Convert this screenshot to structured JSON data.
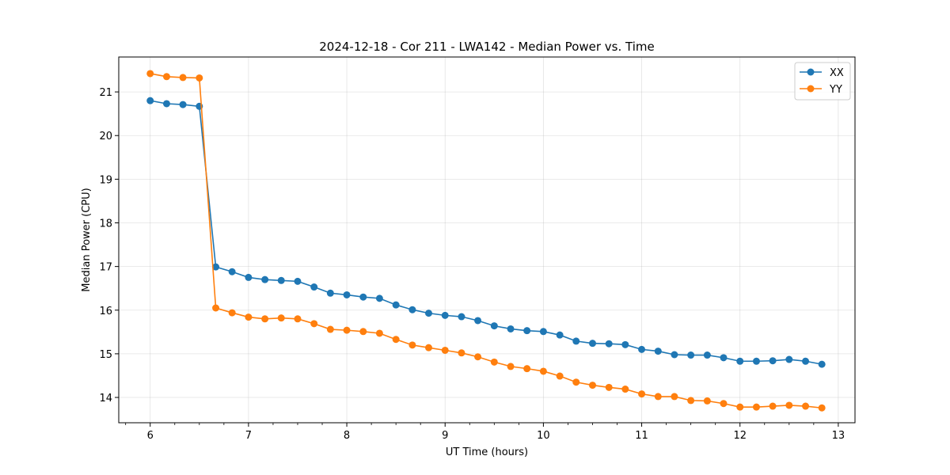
{
  "chart_data": {
    "type": "line",
    "title": "2024-12-18 - Cor 211 - LWA142 - Median Power vs. Time",
    "xlabel": "UT Time (hours)",
    "ylabel": "Median Power (CPU)",
    "xlim": [
      5.68,
      13.17
    ],
    "ylim": [
      13.42,
      21.8
    ],
    "xticks": [
      6,
      7,
      8,
      9,
      10,
      11,
      12,
      13
    ],
    "yticks": [
      14,
      15,
      16,
      17,
      18,
      19,
      20,
      21
    ],
    "xtick_labels": [
      "6",
      "7",
      "8",
      "9",
      "10",
      "11",
      "12",
      "13"
    ],
    "ytick_labels": [
      "14",
      "15",
      "16",
      "17",
      "18",
      "19",
      "20",
      "21"
    ],
    "grid": true,
    "legend_position": "top-right",
    "x": [
      6.0,
      6.167,
      6.333,
      6.5,
      6.667,
      6.833,
      7.0,
      7.167,
      7.333,
      7.5,
      7.667,
      7.833,
      8.0,
      8.167,
      8.333,
      8.5,
      8.667,
      8.833,
      9.0,
      9.167,
      9.333,
      9.5,
      9.667,
      9.833,
      10.0,
      10.167,
      10.333,
      10.5,
      10.667,
      10.833,
      11.0,
      11.167,
      11.333,
      11.5,
      11.667,
      11.833,
      12.0,
      12.167,
      12.333,
      12.5,
      12.667,
      12.833
    ],
    "series": [
      {
        "name": "XX",
        "color": "#1f77b4",
        "values": [
          20.8,
          20.73,
          20.71,
          20.67,
          16.99,
          16.88,
          16.75,
          16.7,
          16.68,
          16.66,
          16.53,
          16.39,
          16.35,
          16.3,
          16.27,
          16.12,
          16.01,
          15.93,
          15.88,
          15.85,
          15.76,
          15.64,
          15.57,
          15.53,
          15.51,
          15.43,
          15.29,
          15.24,
          15.23,
          15.21,
          15.1,
          15.06,
          14.98,
          14.97,
          14.97,
          14.91,
          14.83,
          14.83,
          14.84,
          14.87,
          14.83,
          14.76
        ]
      },
      {
        "name": "YY",
        "color": "#ff7f0e",
        "values": [
          21.42,
          21.35,
          21.33,
          21.32,
          16.05,
          15.94,
          15.84,
          15.8,
          15.82,
          15.8,
          15.69,
          15.56,
          15.54,
          15.51,
          15.47,
          15.33,
          15.2,
          15.14,
          15.08,
          15.02,
          14.93,
          14.81,
          14.71,
          14.66,
          14.6,
          14.49,
          14.35,
          14.28,
          14.23,
          14.19,
          14.08,
          14.02,
          14.02,
          13.93,
          13.92,
          13.86,
          13.78,
          13.78,
          13.8,
          13.82,
          13.8,
          13.76
        ]
      }
    ]
  }
}
